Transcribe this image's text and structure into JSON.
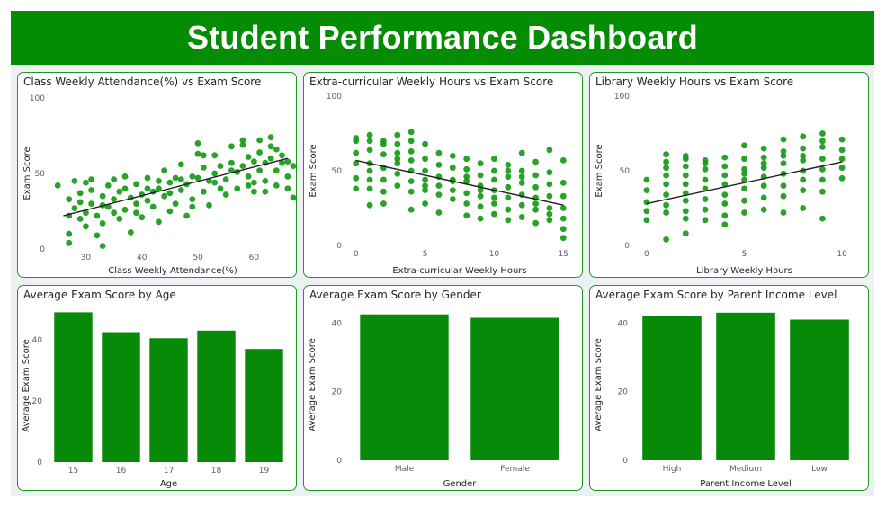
{
  "dashboard": {
    "title": "Student Performance Dashboard"
  },
  "colors": {
    "brand": "#058c05",
    "dot": "#169a16",
    "bar": "#078a07",
    "trend": "#1e1e1e",
    "border": "#1f9a1f"
  },
  "chart_data": [
    {
      "id": "attendance",
      "type": "scatter",
      "title": "Class Weekly Attendance(%) vs Exam Score",
      "xlabel": "Class Weekly Attendance(%)",
      "ylabel": "Exam Score",
      "xlim": [
        24,
        67
      ],
      "ylim": [
        0,
        100
      ],
      "xticks": [
        30,
        40,
        50,
        60
      ],
      "yticks": [
        0,
        50,
        100
      ],
      "trend": {
        "x": [
          26,
          66
        ],
        "y": [
          22,
          60
        ]
      },
      "points": [
        [
          25,
          42
        ],
        [
          27,
          33
        ],
        [
          27,
          10
        ],
        [
          27,
          4
        ],
        [
          28,
          45
        ],
        [
          28,
          27
        ],
        [
          29,
          20
        ],
        [
          29,
          37
        ],
        [
          30,
          24
        ],
        [
          30,
          44
        ],
        [
          30,
          15
        ],
        [
          31,
          30
        ],
        [
          31,
          39
        ],
        [
          32,
          22
        ],
        [
          32,
          9
        ],
        [
          33,
          35
        ],
        [
          33,
          17
        ],
        [
          33,
          2
        ],
        [
          34,
          42
        ],
        [
          34,
          28
        ],
        [
          35,
          46
        ],
        [
          35,
          33
        ],
        [
          36,
          20
        ],
        [
          36,
          38
        ],
        [
          37,
          26
        ],
        [
          37,
          48
        ],
        [
          38,
          34
        ],
        [
          38,
          11
        ],
        [
          39,
          43
        ],
        [
          39,
          30
        ],
        [
          40,
          36
        ],
        [
          40,
          21
        ],
        [
          41,
          47
        ],
        [
          41,
          40
        ],
        [
          42,
          28
        ],
        [
          42,
          38
        ],
        [
          43,
          18
        ],
        [
          43,
          45
        ],
        [
          44,
          35
        ],
        [
          44,
          52
        ],
        [
          45,
          44
        ],
        [
          45,
          25
        ],
        [
          46,
          30
        ],
        [
          46,
          47
        ],
        [
          47,
          39
        ],
        [
          47,
          56
        ],
        [
          48,
          43
        ],
        [
          48,
          22
        ],
        [
          49,
          48
        ],
        [
          49,
          33
        ],
        [
          50,
          70
        ],
        [
          50,
          63
        ],
        [
          50,
          47
        ],
        [
          51,
          54
        ],
        [
          51,
          38
        ],
        [
          52,
          45
        ],
        [
          52,
          29
        ],
        [
          53,
          50
        ],
        [
          53,
          62
        ],
        [
          54,
          55
        ],
        [
          54,
          40
        ],
        [
          55,
          46
        ],
        [
          55,
          36
        ],
        [
          56,
          68
        ],
        [
          56,
          57
        ],
        [
          57,
          51
        ],
        [
          57,
          40
        ],
        [
          58,
          55
        ],
        [
          58,
          69
        ],
        [
          59,
          48
        ],
        [
          59,
          42
        ],
        [
          60,
          58
        ],
        [
          60,
          44
        ],
        [
          61,
          52
        ],
        [
          61,
          64
        ],
        [
          62,
          57
        ],
        [
          62,
          45
        ],
        [
          63,
          60
        ],
        [
          63,
          74
        ],
        [
          64,
          52
        ],
        [
          64,
          42
        ],
        [
          65,
          57
        ],
        [
          65,
          62
        ],
        [
          66,
          48
        ],
        [
          66,
          40
        ],
        [
          67,
          55
        ],
        [
          67,
          34
        ],
        [
          63,
          68
        ],
        [
          61,
          72
        ],
        [
          59,
          61
        ],
        [
          58,
          72
        ],
        [
          60,
          38
        ],
        [
          62,
          38
        ],
        [
          64,
          66
        ],
        [
          66,
          58
        ],
        [
          56,
          52
        ],
        [
          53,
          44
        ],
        [
          51,
          62
        ],
        [
          49,
          28
        ],
        [
          47,
          46
        ],
        [
          45,
          37
        ],
        [
          43,
          40
        ],
        [
          41,
          32
        ],
        [
          39,
          24
        ],
        [
          37,
          40
        ],
        [
          35,
          24
        ],
        [
          33,
          29
        ],
        [
          31,
          46
        ],
        [
          29,
          31
        ],
        [
          27,
          22
        ]
      ]
    },
    {
      "id": "extracurricular",
      "type": "scatter",
      "title": "Extra-curricular Weekly Hours vs Exam Score",
      "xlabel": "Extra-curricular Weekly Hours",
      "ylabel": "Exam Score",
      "xlim": [
        -0.5,
        15.5
      ],
      "ylim": [
        0,
        100
      ],
      "xticks": [
        0,
        5,
        10,
        15
      ],
      "yticks": [
        0,
        50,
        100
      ],
      "trend": {
        "x": [
          0,
          15
        ],
        "y": [
          57,
          27
        ]
      },
      "points": [
        [
          0,
          72
        ],
        [
          0,
          62
        ],
        [
          0,
          55
        ],
        [
          0,
          45
        ],
        [
          0,
          38
        ],
        [
          1,
          74
        ],
        [
          1,
          70
        ],
        [
          1,
          64
        ],
        [
          1,
          55
        ],
        [
          1,
          50
        ],
        [
          1,
          44
        ],
        [
          1,
          38
        ],
        [
          1,
          27
        ],
        [
          2,
          68
        ],
        [
          2,
          61
        ],
        [
          2,
          52
        ],
        [
          2,
          44
        ],
        [
          2,
          36
        ],
        [
          2,
          28
        ],
        [
          3,
          74
        ],
        [
          3,
          68
        ],
        [
          3,
          62
        ],
        [
          3,
          55
        ],
        [
          3,
          48
        ],
        [
          3,
          40
        ],
        [
          4,
          76
        ],
        [
          4,
          70
        ],
        [
          4,
          63
        ],
        [
          4,
          57
        ],
        [
          4,
          50
        ],
        [
          4,
          43
        ],
        [
          4,
          36
        ],
        [
          4,
          24
        ],
        [
          5,
          68
        ],
        [
          5,
          58
        ],
        [
          5,
          50
        ],
        [
          5,
          44
        ],
        [
          5,
          37
        ],
        [
          5,
          28
        ],
        [
          6,
          62
        ],
        [
          6,
          54
        ],
        [
          6,
          46
        ],
        [
          6,
          40
        ],
        [
          6,
          22
        ],
        [
          7,
          60
        ],
        [
          7,
          52
        ],
        [
          7,
          44
        ],
        [
          7,
          37
        ],
        [
          7,
          31
        ],
        [
          8,
          58
        ],
        [
          8,
          51
        ],
        [
          8,
          43
        ],
        [
          8,
          35
        ],
        [
          8,
          28
        ],
        [
          8,
          20
        ],
        [
          9,
          55
        ],
        [
          9,
          47
        ],
        [
          9,
          40
        ],
        [
          9,
          33
        ],
        [
          9,
          26
        ],
        [
          9,
          18
        ],
        [
          10,
          58
        ],
        [
          10,
          50
        ],
        [
          10,
          44
        ],
        [
          10,
          37
        ],
        [
          10,
          28
        ],
        [
          10,
          21
        ],
        [
          11,
          54
        ],
        [
          11,
          46
        ],
        [
          11,
          39
        ],
        [
          11,
          32
        ],
        [
          11,
          24
        ],
        [
          11,
          17
        ],
        [
          12,
          62
        ],
        [
          12,
          50
        ],
        [
          12,
          42
        ],
        [
          12,
          34
        ],
        [
          12,
          27
        ],
        [
          12,
          19
        ],
        [
          13,
          56
        ],
        [
          13,
          47
        ],
        [
          13,
          39
        ],
        [
          13,
          32
        ],
        [
          13,
          24
        ],
        [
          13,
          15
        ],
        [
          14,
          64
        ],
        [
          14,
          49
        ],
        [
          14,
          41
        ],
        [
          14,
          33
        ],
        [
          14,
          25
        ],
        [
          14,
          17
        ],
        [
          15,
          57
        ],
        [
          15,
          42
        ],
        [
          15,
          33
        ],
        [
          15,
          25
        ],
        [
          15,
          18
        ],
        [
          15,
          11
        ],
        [
          15,
          5
        ],
        [
          0,
          70
        ],
        [
          2,
          70
        ],
        [
          3,
          58
        ],
        [
          5,
          40
        ],
        [
          6,
          34
        ],
        [
          7,
          43
        ],
        [
          8,
          46
        ],
        [
          9,
          37
        ],
        [
          10,
          32
        ],
        [
          11,
          50
        ],
        [
          12,
          46
        ],
        [
          13,
          28
        ],
        [
          14,
          21
        ]
      ]
    },
    {
      "id": "library",
      "type": "scatter",
      "title": "Library Weekly Hours vs Exam Score",
      "xlabel": "Library Weekly Hours",
      "ylabel": "Exam Score",
      "xlim": [
        -0.5,
        10.5
      ],
      "ylim": [
        0,
        100
      ],
      "xticks": [
        0,
        5,
        10
      ],
      "yticks": [
        0,
        50,
        100
      ],
      "trend": {
        "x": [
          0,
          10
        ],
        "y": [
          28,
          56
        ]
      },
      "points": [
        [
          0,
          44
        ],
        [
          0,
          37
        ],
        [
          0,
          29
        ],
        [
          0,
          23
        ],
        [
          0,
          17
        ],
        [
          1,
          56
        ],
        [
          1,
          52
        ],
        [
          1,
          47
        ],
        [
          1,
          41
        ],
        [
          1,
          34
        ],
        [
          1,
          27
        ],
        [
          1,
          22
        ],
        [
          1,
          4
        ],
        [
          2,
          58
        ],
        [
          2,
          53
        ],
        [
          2,
          47
        ],
        [
          2,
          41
        ],
        [
          2,
          35
        ],
        [
          2,
          30
        ],
        [
          2,
          23
        ],
        [
          2,
          18
        ],
        [
          2,
          8
        ],
        [
          3,
          57
        ],
        [
          3,
          51
        ],
        [
          3,
          44
        ],
        [
          3,
          38
        ],
        [
          3,
          31
        ],
        [
          3,
          24
        ],
        [
          3,
          17
        ],
        [
          4,
          53
        ],
        [
          4,
          47
        ],
        [
          4,
          41
        ],
        [
          4,
          34
        ],
        [
          4,
          28
        ],
        [
          4,
          20
        ],
        [
          4,
          14
        ],
        [
          5,
          67
        ],
        [
          5,
          58
        ],
        [
          5,
          51
        ],
        [
          5,
          44
        ],
        [
          5,
          38
        ],
        [
          5,
          30
        ],
        [
          5,
          22
        ],
        [
          6,
          65
        ],
        [
          6,
          59
        ],
        [
          6,
          52
        ],
        [
          6,
          46
        ],
        [
          6,
          40
        ],
        [
          6,
          32
        ],
        [
          6,
          24
        ],
        [
          7,
          71
        ],
        [
          7,
          63
        ],
        [
          7,
          55
        ],
        [
          7,
          48
        ],
        [
          7,
          40
        ],
        [
          7,
          33
        ],
        [
          7,
          22
        ],
        [
          8,
          73
        ],
        [
          8,
          65
        ],
        [
          8,
          57
        ],
        [
          8,
          50
        ],
        [
          8,
          44
        ],
        [
          8,
          37
        ],
        [
          8,
          25
        ],
        [
          9,
          75
        ],
        [
          9,
          66
        ],
        [
          9,
          58
        ],
        [
          9,
          51
        ],
        [
          9,
          44
        ],
        [
          9,
          36
        ],
        [
          9,
          18
        ],
        [
          10,
          71
        ],
        [
          10,
          64
        ],
        [
          10,
          58
        ],
        [
          10,
          52
        ],
        [
          10,
          45
        ],
        [
          1,
          61
        ],
        [
          2,
          60
        ],
        [
          3,
          55
        ],
        [
          4,
          59
        ],
        [
          5,
          48
        ],
        [
          6,
          55
        ],
        [
          7,
          60
        ],
        [
          8,
          60
        ],
        [
          9,
          70
        ]
      ]
    },
    {
      "id": "age",
      "type": "bar",
      "title": "Average Exam Score by Age",
      "xlabel": "Age",
      "ylabel": "Average Exam Score",
      "categories": [
        "15",
        "16",
        "17",
        "18",
        "19"
      ],
      "values": [
        49,
        42.5,
        40.5,
        43,
        37
      ],
      "ylim": [
        0,
        50
      ],
      "yticks": [
        0,
        20,
        40
      ]
    },
    {
      "id": "gender",
      "type": "bar",
      "title": "Average Exam Score by Gender",
      "xlabel": "Gender",
      "ylabel": "Average Exam Score",
      "categories": [
        "Male",
        "Female"
      ],
      "values": [
        42.5,
        41.5
      ],
      "ylim": [
        0,
        44
      ],
      "yticks": [
        0,
        20,
        40
      ]
    },
    {
      "id": "income",
      "type": "bar",
      "title": "Average Exam Score by Parent Income Level",
      "xlabel": "Parent Income Level",
      "ylabel": "Average Exam Score",
      "categories": [
        "High",
        "Medium",
        "Low"
      ],
      "values": [
        42,
        43,
        41
      ],
      "ylim": [
        0,
        44
      ],
      "yticks": [
        0,
        20,
        40
      ]
    }
  ]
}
